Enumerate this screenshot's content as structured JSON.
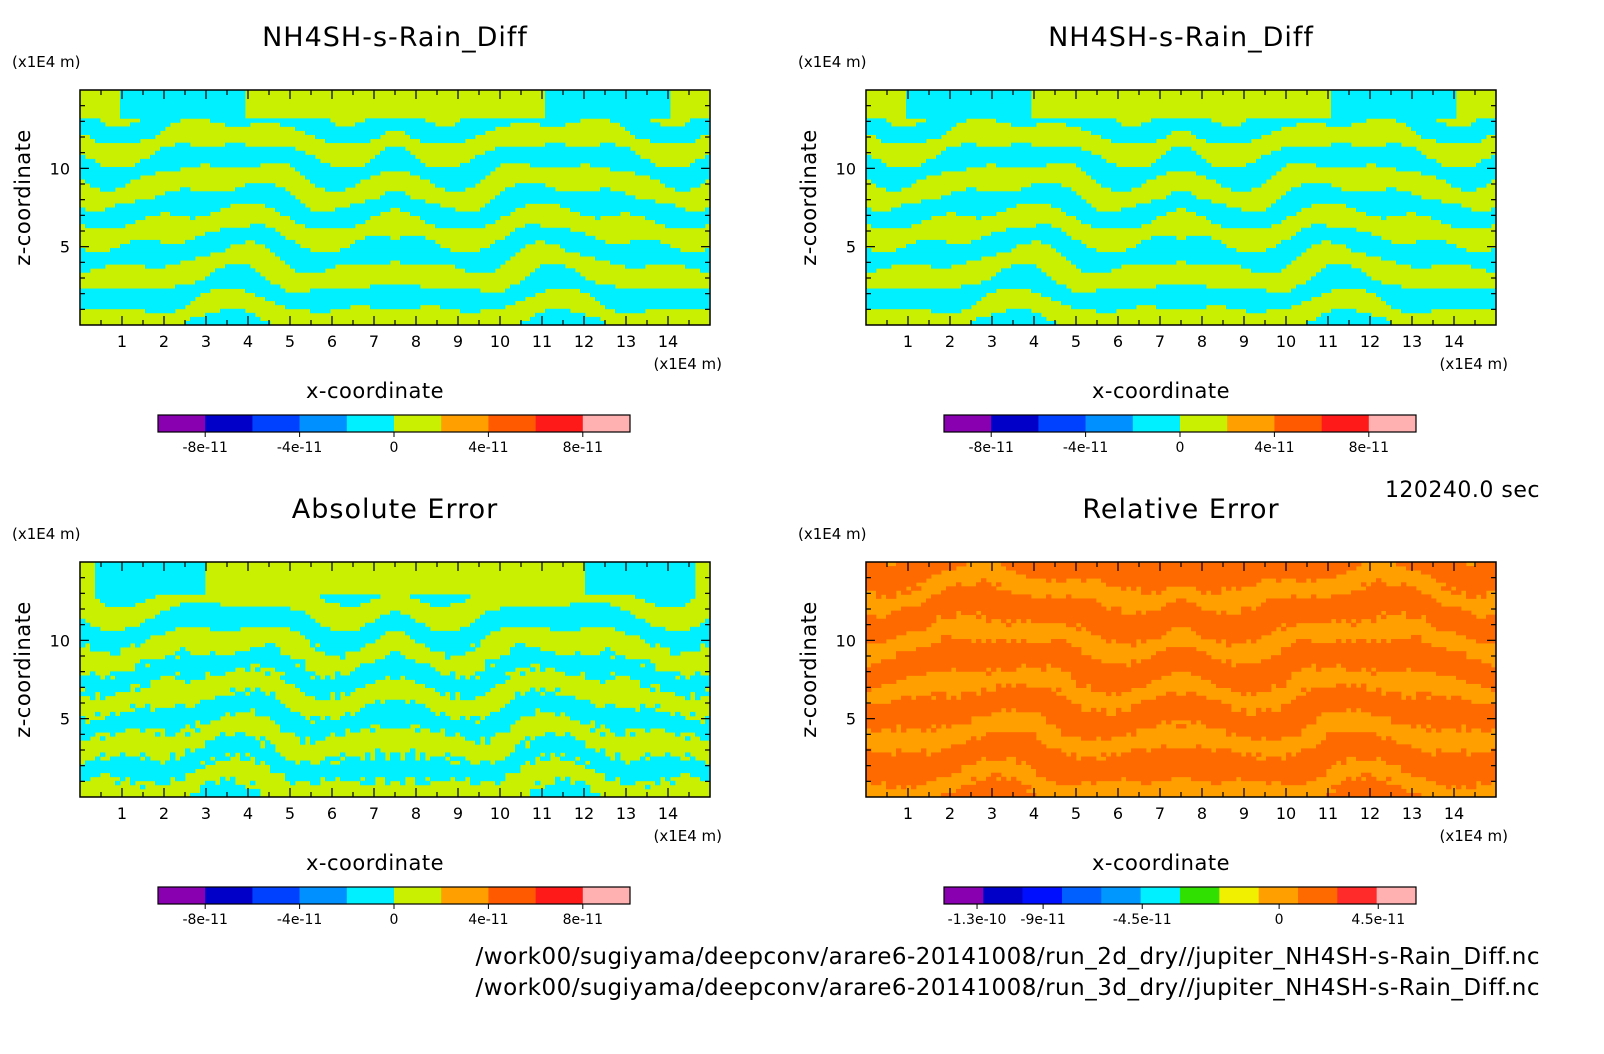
{
  "timestamp": "120240.0 sec",
  "footer": {
    "line1": "/work00/sugiyama/deepconv/arare6-20141008/run_2d_dry//jupiter_NH4SH-s-Rain_Diff.nc",
    "line2": "/work00/sugiyama/deepconv/arare6-20141008/run_3d_dry//jupiter_NH4SH-s-Rain_Diff.nc"
  },
  "chart_data": [
    {
      "type": "heatmap",
      "title": "NH4SH-s-Rain_Diff",
      "xlabel": "x-coordinate",
      "ylabel": "z-coordinate",
      "xunit": "(x1E4 m)",
      "yunit": "(x1E4 m)",
      "xlim": [
        0,
        15
      ],
      "ylim": [
        0,
        15
      ],
      "xticks": [
        "1",
        "2",
        "3",
        "4",
        "5",
        "6",
        "7",
        "8",
        "9",
        "10",
        "11",
        "12",
        "13",
        "14"
      ],
      "yticks": [
        "5",
        "10"
      ],
      "pattern": "bands",
      "field_colors": [
        "#c8f000",
        "#00f0ff"
      ],
      "colorbar": {
        "colors": [
          "#8800b0",
          "#0000c8",
          "#0040ff",
          "#0090ff",
          "#00f0ff",
          "#c8f000",
          "#ffa000",
          "#ff5a00",
          "#ff1a1a",
          "#ffb0b0"
        ],
        "tick_labels": [
          "-8e-11",
          "-4e-11",
          "0",
          "4e-11",
          "8e-11"
        ]
      }
    },
    {
      "type": "heatmap",
      "title": "NH4SH-s-Rain_Diff",
      "xlabel": "x-coordinate",
      "ylabel": "z-coordinate",
      "xunit": "(x1E4 m)",
      "yunit": "(x1E4 m)",
      "xlim": [
        0,
        15
      ],
      "ylim": [
        0,
        15
      ],
      "xticks": [
        "1",
        "2",
        "3",
        "4",
        "5",
        "6",
        "7",
        "8",
        "9",
        "10",
        "11",
        "12",
        "13",
        "14"
      ],
      "yticks": [
        "5",
        "10"
      ],
      "pattern": "bands",
      "field_colors": [
        "#c8f000",
        "#00f0ff"
      ],
      "colorbar": {
        "colors": [
          "#8800b0",
          "#0000c8",
          "#0040ff",
          "#0090ff",
          "#00f0ff",
          "#c8f000",
          "#ffa000",
          "#ff5a00",
          "#ff1a1a",
          "#ffb0b0"
        ],
        "tick_labels": [
          "-8e-11",
          "-4e-11",
          "0",
          "4e-11",
          "8e-11"
        ]
      }
    },
    {
      "type": "heatmap",
      "title": "Absolute Error",
      "xlabel": "x-coordinate",
      "ylabel": "z-coordinate",
      "xunit": "(x1E4 m)",
      "yunit": "(x1E4 m)",
      "xlim": [
        0,
        15
      ],
      "ylim": [
        0,
        15
      ],
      "xticks": [
        "1",
        "2",
        "3",
        "4",
        "5",
        "6",
        "7",
        "8",
        "9",
        "10",
        "11",
        "12",
        "13",
        "14"
      ],
      "yticks": [
        "5",
        "10"
      ],
      "pattern": "noisy",
      "field_colors": [
        "#c8f000",
        "#00f0ff"
      ],
      "colorbar": {
        "colors": [
          "#8800b0",
          "#0000c8",
          "#0040ff",
          "#0090ff",
          "#00f0ff",
          "#c8f000",
          "#ffa000",
          "#ff5a00",
          "#ff1a1a",
          "#ffb0b0"
        ],
        "tick_labels": [
          "-8e-11",
          "-4e-11",
          "0",
          "4e-11",
          "8e-11"
        ]
      }
    },
    {
      "type": "heatmap",
      "title": "Relative Error",
      "xlabel": "x-coordinate",
      "ylabel": "z-coordinate",
      "xunit": "(x1E4 m)",
      "yunit": "(x1E4 m)",
      "xlim": [
        0,
        15
      ],
      "ylim": [
        0,
        15
      ],
      "xticks": [
        "1",
        "2",
        "3",
        "4",
        "5",
        "6",
        "7",
        "8",
        "9",
        "10",
        "11",
        "12",
        "13",
        "14"
      ],
      "yticks": [
        "5",
        "10"
      ],
      "pattern": "relative",
      "field_colors": [
        "#ffa000",
        "#ff6a00"
      ],
      "colorbar": {
        "colors": [
          "#8800b0",
          "#0000c8",
          "#0010ff",
          "#0060ff",
          "#0098ff",
          "#00f0ff",
          "#30e000",
          "#f0f000",
          "#ffa000",
          "#ff6a00",
          "#ff2a2a",
          "#ffb0b0"
        ],
        "tick_labels": [
          "-1.3e-10",
          "-9e-11",
          "-4.5e-11",
          "0",
          "4.5e-11"
        ]
      }
    }
  ]
}
